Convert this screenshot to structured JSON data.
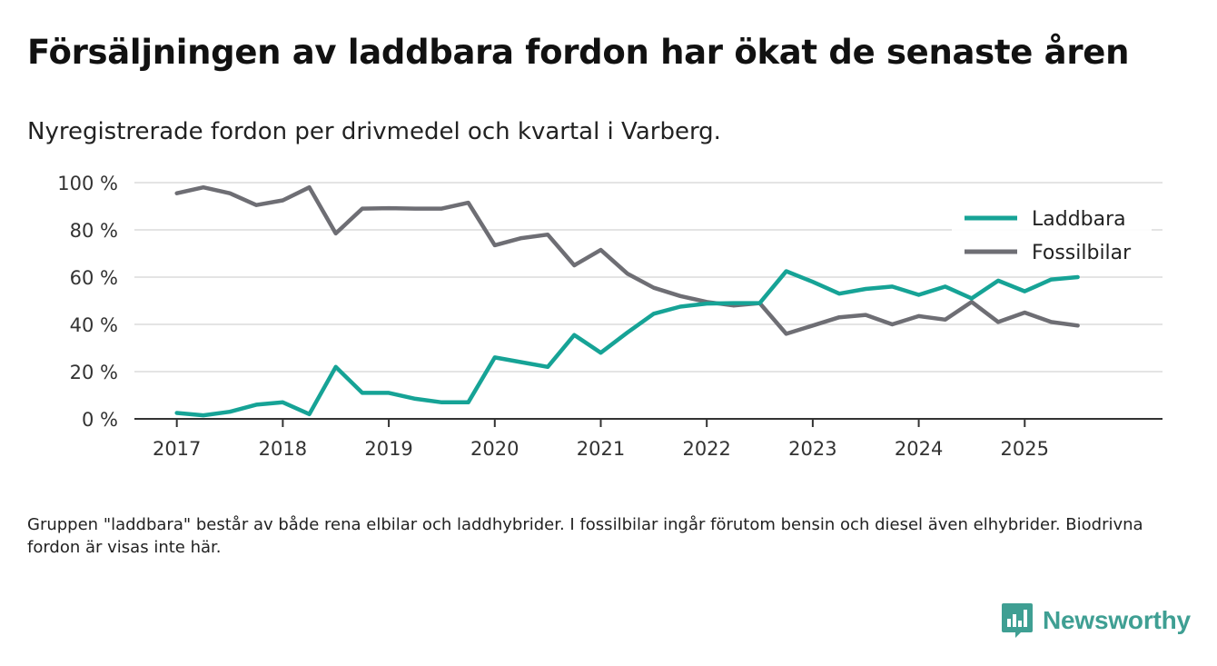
{
  "title": "Försäljningen av laddbara fordon har ökat de senaste åren",
  "subtitle": "Nyregistrerade fordon per drivmedel och kvartal i Varberg.",
  "footnote": "Gruppen \"laddbara\" består av både rena elbilar och laddhybrider. I fossilbilar ingår förutom bensin och diesel även elhybrider. Biodrivna fordon är visas inte här.",
  "brand": {
    "name": "Newsworthy",
    "color": "#3f9f93"
  },
  "chart_data": {
    "type": "line",
    "title": "Försäljningen av laddbara fordon har ökat de senaste åren",
    "subtitle": "Nyregistrerade fordon per drivmedel och kvartal i Varberg.",
    "xlabel": "",
    "ylabel": "",
    "x_start": 2017,
    "x_step": 0.25,
    "xlim": [
      2016.6,
      2026.3
    ],
    "ylim": [
      0,
      100
    ],
    "y_ticks": [
      0,
      20,
      40,
      60,
      80,
      100
    ],
    "y_tick_labels": [
      "0 %",
      "20 %",
      "40 %",
      "60 %",
      "80 %",
      "100 %"
    ],
    "x_ticks": [
      2017,
      2018,
      2019,
      2020,
      2021,
      2022,
      2023,
      2024,
      2025
    ],
    "x_tick_labels": [
      "2017",
      "2018",
      "2019",
      "2020",
      "2021",
      "2022",
      "2023",
      "2024",
      "2025"
    ],
    "grid": true,
    "legend_position": "top-right",
    "series": [
      {
        "name": "Laddbara",
        "color": "#16a396",
        "values": [
          2.5,
          1.5,
          3,
          6,
          7,
          2,
          22,
          11,
          11,
          8.5,
          7,
          7,
          26,
          24,
          22,
          35.5,
          28,
          36.5,
          44.5,
          47.5,
          48.8,
          49,
          49,
          62.5,
          58,
          53,
          55,
          56,
          52.5,
          56,
          51,
          58.5,
          54,
          59,
          60
        ]
      },
      {
        "name": "Fossilbilar",
        "color": "#6e6e74",
        "values": [
          95.5,
          98,
          95.5,
          90.5,
          92.5,
          98,
          78.5,
          89,
          89.2,
          89,
          89,
          91.5,
          73.5,
          76.5,
          78,
          65,
          71.5,
          61.5,
          55.5,
          52,
          49.5,
          48,
          49,
          36,
          39.5,
          43,
          44,
          40,
          43.5,
          42,
          49.5,
          41,
          45,
          41,
          39.5
        ]
      }
    ]
  }
}
